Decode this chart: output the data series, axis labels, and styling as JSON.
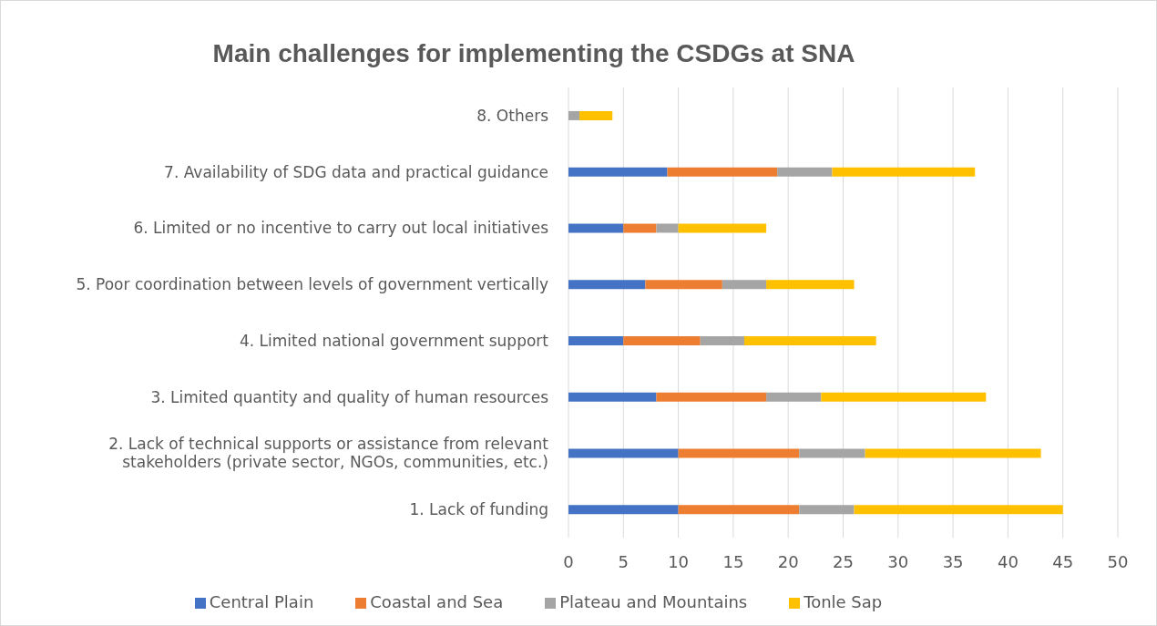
{
  "chart_data": {
    "type": "bar",
    "orientation": "horizontal",
    "stacked": true,
    "title": "Main challenges for implementing the CSDGs at SNA",
    "categories": [
      "8. Others",
      "7. Availability of SDG data and practical guidance",
      "6. Limited or no incentive to carry out local initiatives",
      "5. Poor coordination between levels of government vertically",
      "4. Limited national government support",
      "3. Limited quantity and quality of human resources",
      "2. Lack of technical supports or assistance from relevant stakeholders (private sector, NGOs, communities, etc.)",
      "1. Lack of funding"
    ],
    "series": [
      {
        "name": "Central Plain",
        "color": "#4472c4",
        "values": [
          0,
          9,
          5,
          7,
          5,
          8,
          10,
          10
        ]
      },
      {
        "name": "Coastal and Sea",
        "color": "#ed7d31",
        "values": [
          0,
          10,
          3,
          7,
          7,
          10,
          11,
          11
        ]
      },
      {
        "name": "Plateau and Mountains",
        "color": "#a5a5a5",
        "values": [
          1,
          5,
          2,
          4,
          4,
          5,
          6,
          5
        ]
      },
      {
        "name": "Tonle Sap",
        "color": "#ffc000",
        "values": [
          3,
          13,
          8,
          8,
          12,
          15,
          16,
          19
        ]
      }
    ],
    "xlim": [
      0,
      50
    ],
    "xticks": [
      0,
      5,
      10,
      15,
      20,
      25,
      30,
      35,
      40,
      45,
      50
    ],
    "grid": "x",
    "legend": "bottom"
  }
}
